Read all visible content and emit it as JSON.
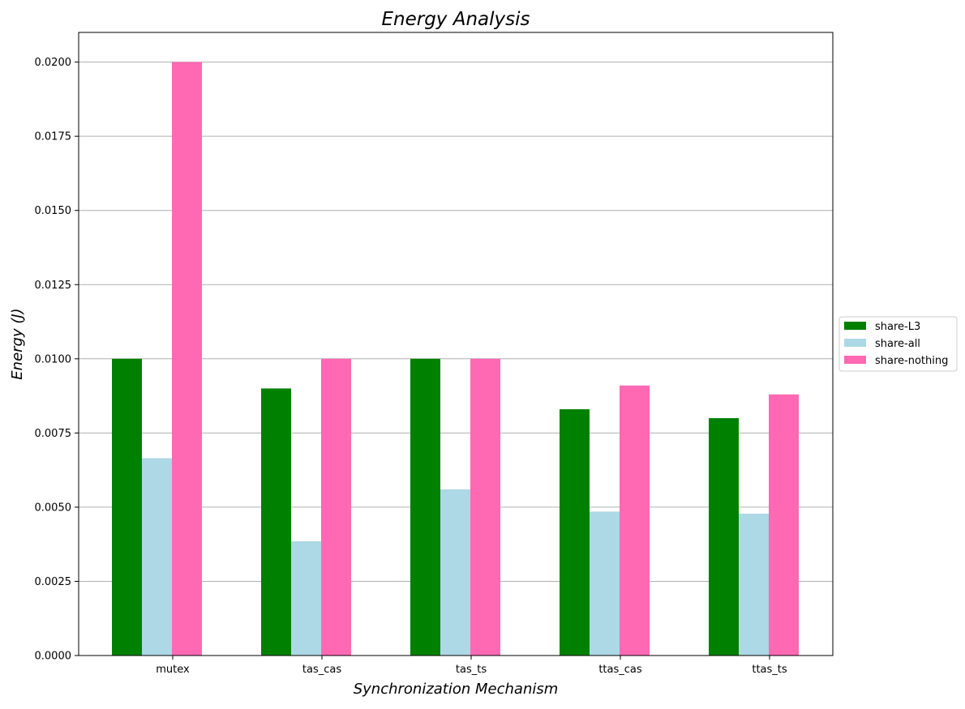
{
  "chart_data": {
    "type": "bar",
    "title": "Energy Analysis",
    "xlabel": "Synchronization Mechanism",
    "ylabel": "Energy (J)",
    "categories": [
      "mutex",
      "tas_cas",
      "tas_ts",
      "ttas_cas",
      "ttas_ts"
    ],
    "series": [
      {
        "name": "share-L3",
        "color": "#008000",
        "values": [
          0.01,
          0.009,
          0.01,
          0.0083,
          0.008
        ]
      },
      {
        "name": "share-all",
        "color": "#add8e6",
        "values": [
          0.00665,
          0.00385,
          0.0056,
          0.00485,
          0.00478
        ]
      },
      {
        "name": "share-nothing",
        "color": "#ff69b4",
        "values": [
          0.02,
          0.01,
          0.01,
          0.0091,
          0.0088
        ]
      }
    ],
    "ylim": [
      0,
      0.021
    ],
    "yticks": [
      "0.0000",
      "0.0025",
      "0.0050",
      "0.0075",
      "0.0100",
      "0.0125",
      "0.0150",
      "0.0175",
      "0.0200"
    ],
    "grid": "y",
    "legend_position": "right-outside-center"
  }
}
